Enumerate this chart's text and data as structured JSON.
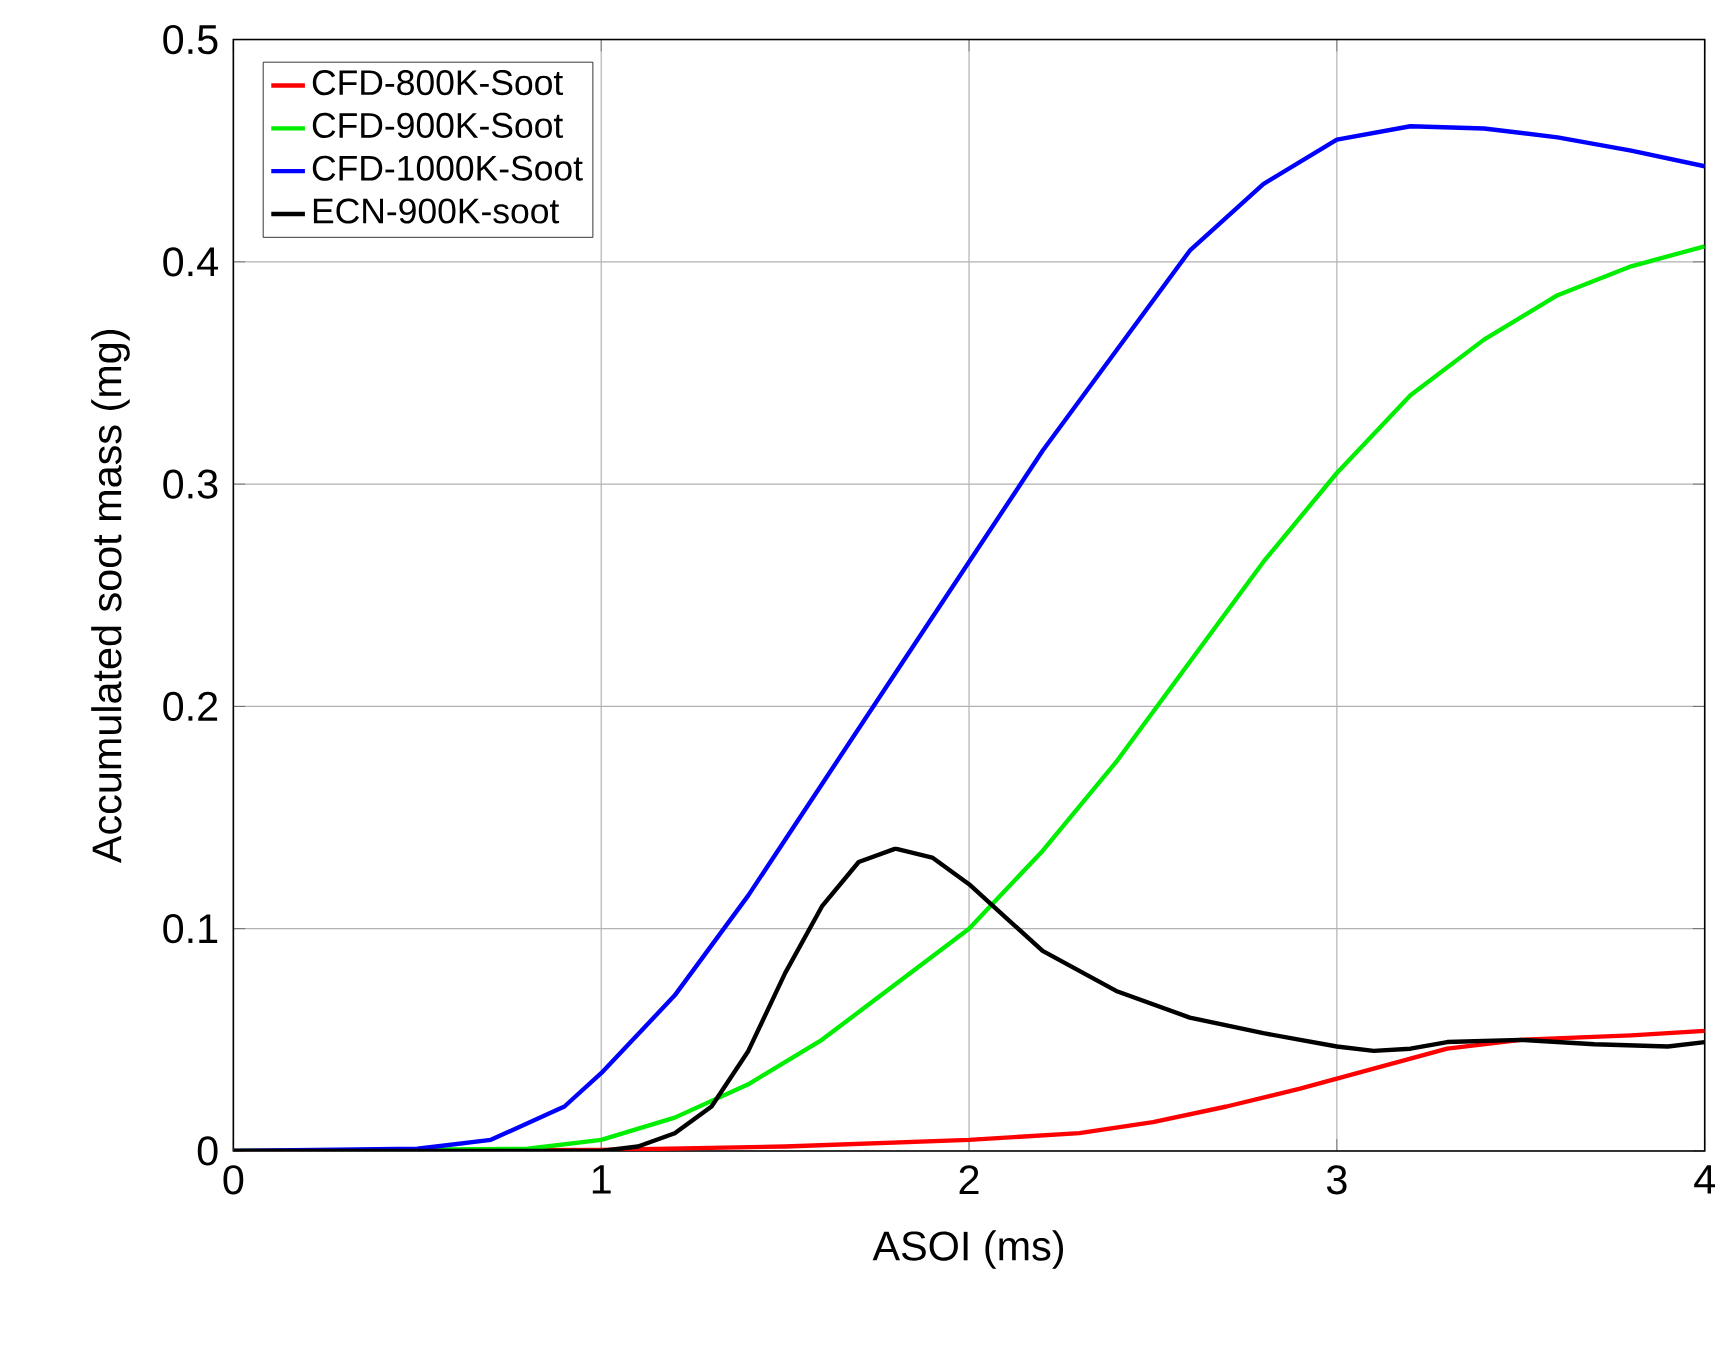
{
  "chart_data": {
    "type": "line",
    "xlabel": "ASOI (ms)",
    "ylabel": "Accumulated soot mass (mg)",
    "xlim": [
      0,
      4
    ],
    "ylim": [
      0,
      0.5
    ],
    "xticks": [
      0,
      1,
      2,
      3,
      4
    ],
    "yticks": [
      0,
      0.1,
      0.2,
      0.3,
      0.4,
      0.5
    ],
    "grid": true,
    "legend": "top left",
    "marker": "none",
    "line_style": "solid",
    "series": [
      {
        "name": "CFD-800K-Soot",
        "color": "#ff0000",
        "x": [
          0,
          1.0,
          1.5,
          2.0,
          2.3,
          2.5,
          2.7,
          2.9,
          3.1,
          3.3,
          3.5,
          3.8,
          4.0
        ],
        "values": [
          0,
          0.0005,
          0.002,
          0.005,
          0.008,
          0.013,
          0.02,
          0.028,
          0.037,
          0.046,
          0.05,
          0.052,
          0.054
        ]
      },
      {
        "name": "CFD-900K-Soot",
        "color": "#00ee00",
        "x": [
          0,
          0.8,
          1.0,
          1.2,
          1.4,
          1.6,
          1.8,
          2.0,
          2.2,
          2.4,
          2.6,
          2.8,
          3.0,
          3.2,
          3.4,
          3.6,
          3.8,
          4.0
        ],
        "values": [
          0,
          0.001,
          0.005,
          0.015,
          0.03,
          0.05,
          0.075,
          0.1,
          0.135,
          0.175,
          0.22,
          0.265,
          0.305,
          0.34,
          0.365,
          0.385,
          0.398,
          0.407
        ]
      },
      {
        "name": "CFD-1000K-Soot",
        "color": "#0000ff",
        "x": [
          0,
          0.5,
          0.7,
          0.9,
          1.0,
          1.2,
          1.4,
          1.6,
          1.8,
          2.0,
          2.2,
          2.4,
          2.6,
          2.8,
          3.0,
          3.2,
          3.4,
          3.6,
          3.8,
          4.0
        ],
        "values": [
          0,
          0.001,
          0.005,
          0.02,
          0.035,
          0.07,
          0.115,
          0.165,
          0.215,
          0.265,
          0.315,
          0.36,
          0.405,
          0.435,
          0.455,
          0.461,
          0.46,
          0.456,
          0.45,
          0.443
        ]
      },
      {
        "name": "ECN-900K-soot",
        "color": "#000000",
        "x": [
          0,
          1.0,
          1.1,
          1.2,
          1.3,
          1.4,
          1.5,
          1.6,
          1.7,
          1.8,
          1.9,
          2.0,
          2.1,
          2.2,
          2.4,
          2.6,
          2.8,
          3.0,
          3.1,
          3.2,
          3.3,
          3.5,
          3.7,
          3.9,
          4.0
        ],
        "values": [
          0,
          0,
          0.002,
          0.008,
          0.02,
          0.045,
          0.08,
          0.11,
          0.13,
          0.136,
          0.132,
          0.12,
          0.105,
          0.09,
          0.072,
          0.06,
          0.053,
          0.047,
          0.045,
          0.046,
          0.049,
          0.05,
          0.048,
          0.047,
          0.049
        ]
      }
    ]
  }
}
